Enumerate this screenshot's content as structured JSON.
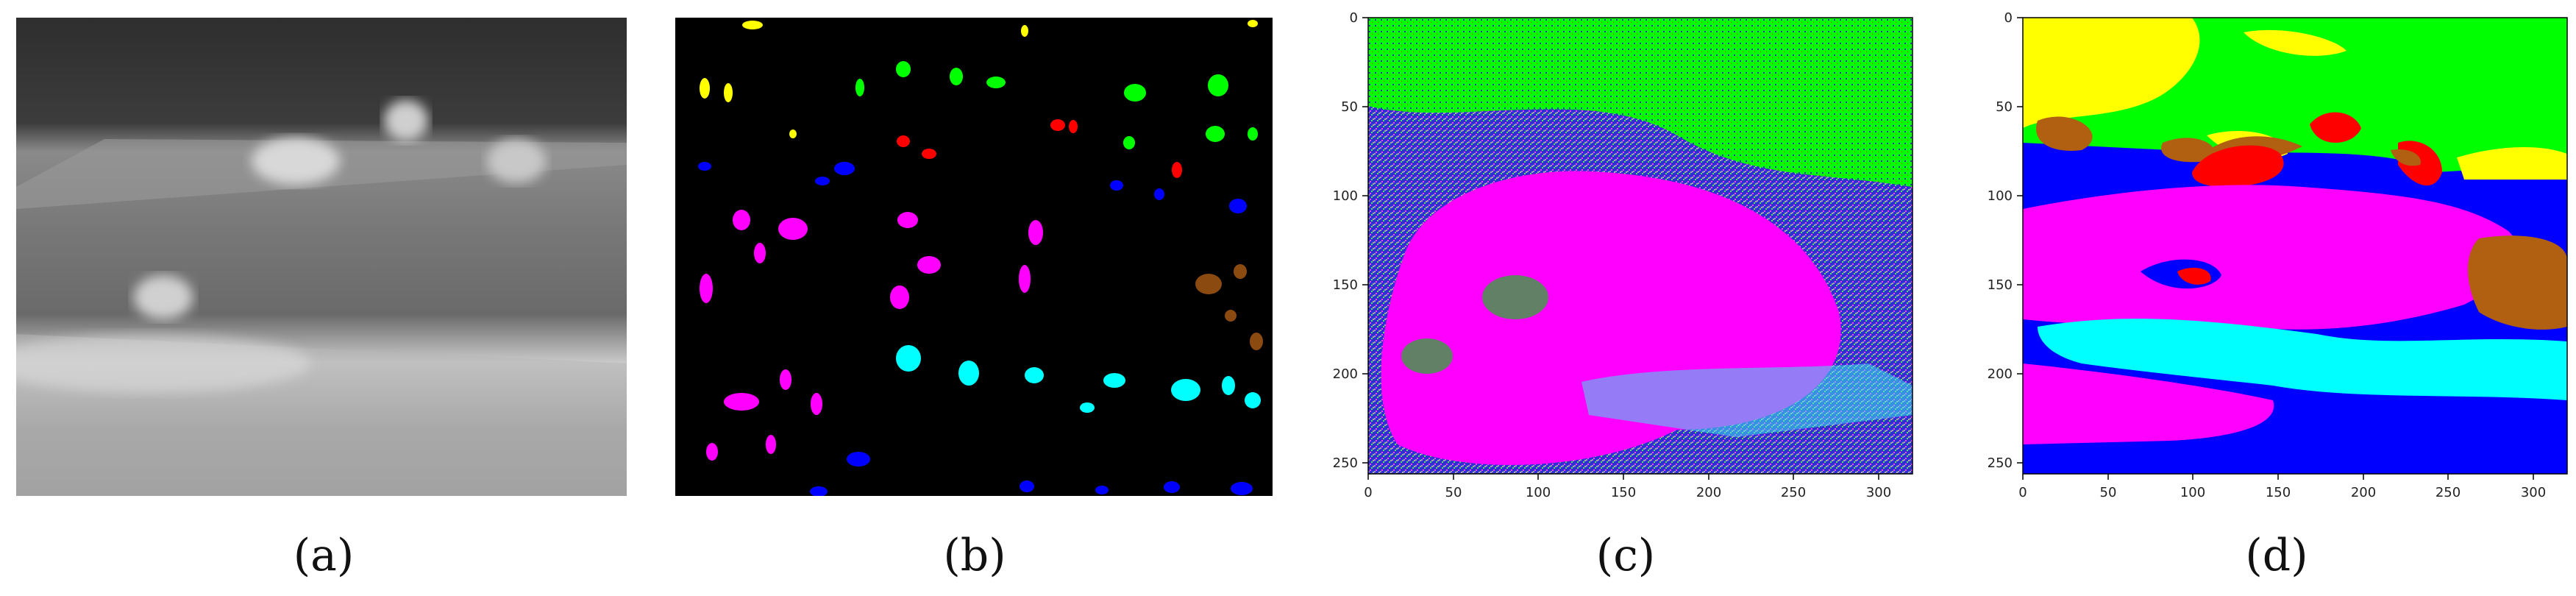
{
  "figure": {
    "captions": [
      "(a)",
      "(b)",
      "(c)",
      "(d)"
    ]
  },
  "panel_c": {
    "xticks": [
      "0",
      "50",
      "100",
      "150",
      "200",
      "250",
      "300"
    ],
    "yticks": [
      "0",
      "50",
      "100",
      "150",
      "200",
      "250"
    ]
  },
  "panel_d": {
    "xticks": [
      "0",
      "50",
      "100",
      "150",
      "200",
      "250",
      "300"
    ],
    "yticks": [
      "0",
      "50",
      "100",
      "150",
      "200",
      "250"
    ]
  },
  "colors": {
    "green": "#00ff00",
    "magenta": "#ff00ff",
    "blue": "#0000ff",
    "cyan": "#00ffff",
    "red": "#ff0000",
    "yellow": "#ffff00",
    "brown": "#b06010",
    "black": "#000000"
  }
}
